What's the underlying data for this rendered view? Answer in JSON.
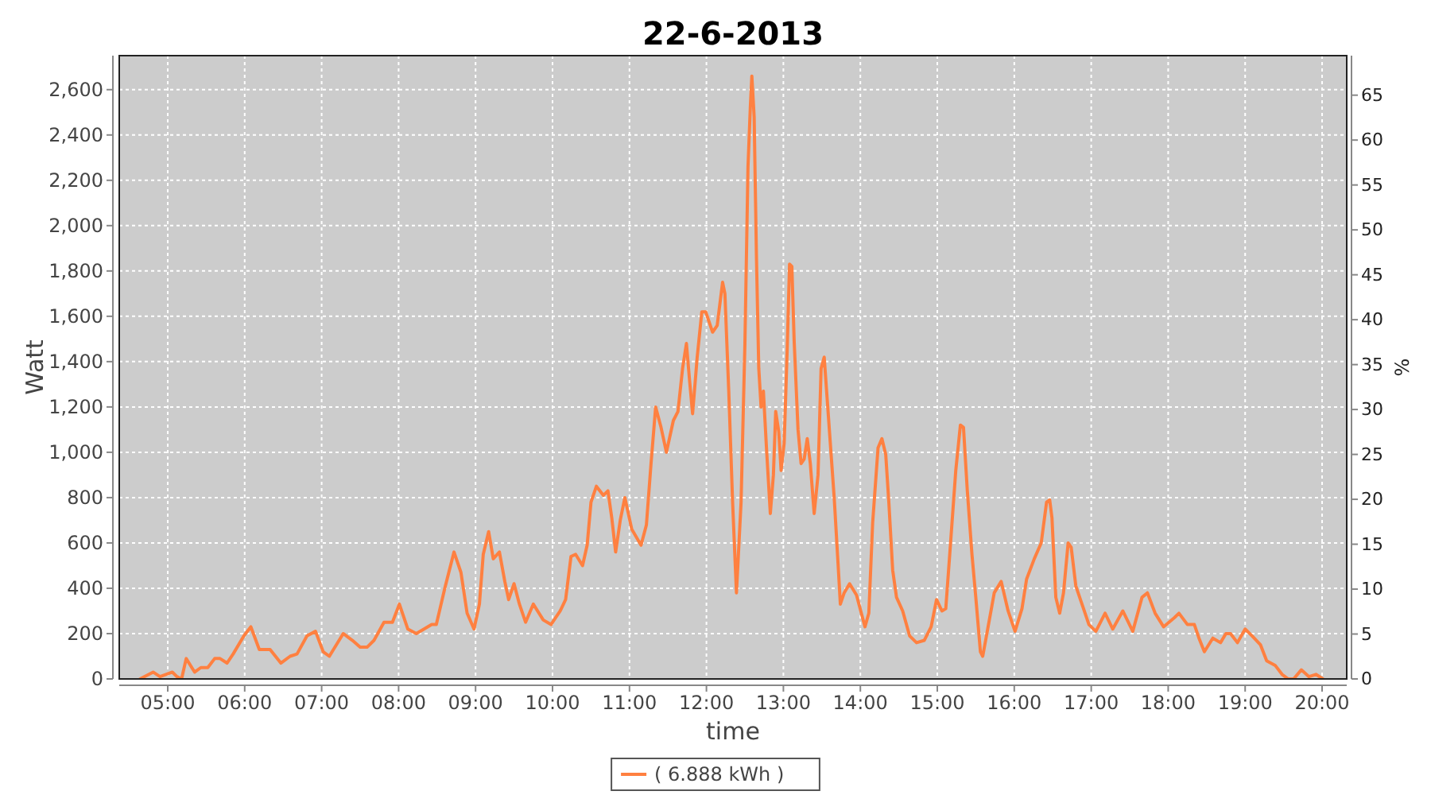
{
  "chart_data": {
    "type": "line",
    "title": "22-6-2013",
    "xlabel": "time",
    "ylabel": "Watt",
    "y2label": "%",
    "x": [
      4.64,
      4.81,
      4.9,
      5.06,
      5.12,
      5.18,
      5.24,
      5.35,
      5.43,
      5.52,
      5.61,
      5.68,
      5.77,
      5.85,
      5.99,
      6.08,
      6.19,
      6.33,
      6.47,
      6.59,
      6.68,
      6.81,
      6.92,
      7.02,
      7.1,
      7.28,
      7.4,
      7.5,
      7.59,
      7.68,
      7.81,
      7.92,
      8.01,
      8.12,
      8.23,
      8.33,
      8.43,
      8.49,
      8.6,
      8.72,
      8.81,
      8.89,
      8.98,
      9.05,
      9.1,
      9.17,
      9.23,
      9.31,
      9.38,
      9.43,
      9.5,
      9.57,
      9.65,
      9.75,
      9.88,
      9.98,
      10.1,
      10.17,
      10.24,
      10.3,
      10.39,
      10.45,
      10.5,
      10.57,
      10.66,
      10.72,
      10.77,
      10.82,
      10.88,
      10.94,
      11.03,
      11.15,
      11.22,
      11.28,
      11.34,
      11.41,
      11.48,
      11.57,
      11.63,
      11.69,
      11.74,
      11.78,
      11.82,
      11.88,
      11.94,
      11.99,
      12.08,
      12.14,
      12.21,
      12.24,
      12.29,
      12.34,
      12.39,
      12.45,
      12.5,
      12.54,
      12.57,
      12.59,
      12.62,
      12.65,
      12.68,
      12.71,
      12.74,
      12.78,
      12.83,
      12.87,
      12.9,
      12.94,
      12.97,
      13.01,
      13.05,
      13.08,
      13.11,
      13.14,
      13.19,
      13.23,
      13.27,
      13.31,
      13.35,
      13.4,
      13.45,
      13.49,
      13.53,
      13.57,
      13.62,
      13.66,
      13.71,
      13.74,
      13.79,
      13.86,
      13.95,
      14.06,
      14.11,
      14.16,
      14.23,
      14.28,
      14.33,
      14.37,
      14.42,
      14.47,
      14.55,
      14.64,
      14.73,
      14.83,
      14.92,
      14.99,
      15.06,
      15.11,
      15.17,
      15.24,
      15.3,
      15.34,
      15.39,
      15.45,
      15.5,
      15.56,
      15.59,
      15.66,
      15.74,
      15.83,
      15.92,
      16.01,
      16.1,
      16.16,
      16.26,
      16.35,
      16.42,
      16.46,
      16.49,
      16.54,
      16.59,
      16.64,
      16.7,
      16.74,
      16.8,
      16.87,
      16.97,
      17.06,
      17.18,
      17.28,
      17.41,
      17.54,
      17.66,
      17.73,
      17.83,
      17.94,
      18.08,
      18.14,
      18.25,
      18.34,
      18.4,
      18.47,
      18.58,
      18.68,
      18.75,
      18.81,
      18.9,
      19.0,
      19.09,
      19.2,
      19.28,
      19.39,
      19.48,
      19.56,
      19.63,
      19.73,
      19.83,
      19.92,
      20.01
    ],
    "series": [
      {
        "name": "( 6.888 kWh )",
        "color": "#ff8040",
        "values": [
          0,
          30,
          10,
          30,
          10,
          0,
          90,
          30,
          50,
          50,
          90,
          90,
          70,
          110,
          190,
          230,
          130,
          130,
          70,
          100,
          110,
          190,
          210,
          120,
          100,
          200,
          170,
          140,
          140,
          170,
          250,
          250,
          330,
          220,
          200,
          220,
          240,
          240,
          400,
          560,
          470,
          290,
          220,
          330,
          550,
          650,
          530,
          560,
          430,
          350,
          420,
          330,
          250,
          330,
          260,
          240,
          300,
          350,
          540,
          550,
          500,
          590,
          780,
          850,
          810,
          830,
          710,
          560,
          700,
          800,
          660,
          590,
          680,
          950,
          1200,
          1110,
          1000,
          1140,
          1180,
          1370,
          1480,
          1320,
          1170,
          1420,
          1620,
          1620,
          1530,
          1560,
          1750,
          1700,
          1270,
          780,
          380,
          780,
          1480,
          2260,
          2520,
          2660,
          2480,
          1860,
          1370,
          1200,
          1270,
          1020,
          730,
          900,
          1180,
          1090,
          920,
          1040,
          1460,
          1830,
          1820,
          1490,
          1100,
          950,
          970,
          1060,
          950,
          730,
          900,
          1370,
          1420,
          1230,
          990,
          800,
          510,
          330,
          380,
          420,
          370,
          230,
          290,
          690,
          1020,
          1060,
          990,
          780,
          480,
          360,
          300,
          190,
          160,
          170,
          230,
          350,
          300,
          310,
          590,
          920,
          1120,
          1110,
          830,
          550,
          360,
          120,
          100,
          230,
          380,
          430,
          300,
          210,
          310,
          440,
          530,
          600,
          780,
          790,
          710,
          360,
          290,
          380,
          600,
          580,
          410,
          340,
          240,
          210,
          290,
          220,
          300,
          210,
          360,
          380,
          290,
          230,
          270,
          290,
          240,
          240,
          180,
          120,
          180,
          160,
          200,
          200,
          160,
          220,
          190,
          150,
          80,
          60,
          20,
          0,
          0,
          40,
          10,
          20,
          0
        ]
      }
    ],
    "xlim": [
      4.37,
      20.32
    ],
    "xticks": [
      {
        "value": 5,
        "label": "05:00"
      },
      {
        "value": 6,
        "label": "06:00"
      },
      {
        "value": 7,
        "label": "07:00"
      },
      {
        "value": 8,
        "label": "08:00"
      },
      {
        "value": 9,
        "label": "09:00"
      },
      {
        "value": 10,
        "label": "10:00"
      },
      {
        "value": 11,
        "label": "11:00"
      },
      {
        "value": 12,
        "label": "12:00"
      },
      {
        "value": 13,
        "label": "13:00"
      },
      {
        "value": 14,
        "label": "14:00"
      },
      {
        "value": 15,
        "label": "15:00"
      },
      {
        "value": 16,
        "label": "16:00"
      },
      {
        "value": 17,
        "label": "17:00"
      },
      {
        "value": 18,
        "label": "18:00"
      },
      {
        "value": 19,
        "label": "19:00"
      },
      {
        "value": 20,
        "label": "20:00"
      }
    ],
    "ylim": [
      0,
      2750
    ],
    "yticks": [
      0,
      200,
      400,
      600,
      800,
      {
        "value": 1000,
        "label": "1,000"
      },
      {
        "value": 1200,
        "label": "1,200"
      },
      {
        "value": 1400,
        "label": "1,400"
      },
      {
        "value": 1600,
        "label": "1,600"
      },
      {
        "value": 1800,
        "label": "1,800"
      },
      {
        "value": 2000,
        "label": "2,000"
      },
      {
        "value": 2200,
        "label": "2,200"
      },
      {
        "value": 2400,
        "label": "2,400"
      },
      {
        "value": 2600,
        "label": "2,600"
      }
    ],
    "y2lim": [
      0,
      69.4
    ],
    "y2ticks": [
      0,
      5,
      10,
      15,
      20,
      25,
      30,
      35,
      40,
      45,
      50,
      55,
      60,
      65
    ],
    "grid": true,
    "legend": "bottom"
  }
}
